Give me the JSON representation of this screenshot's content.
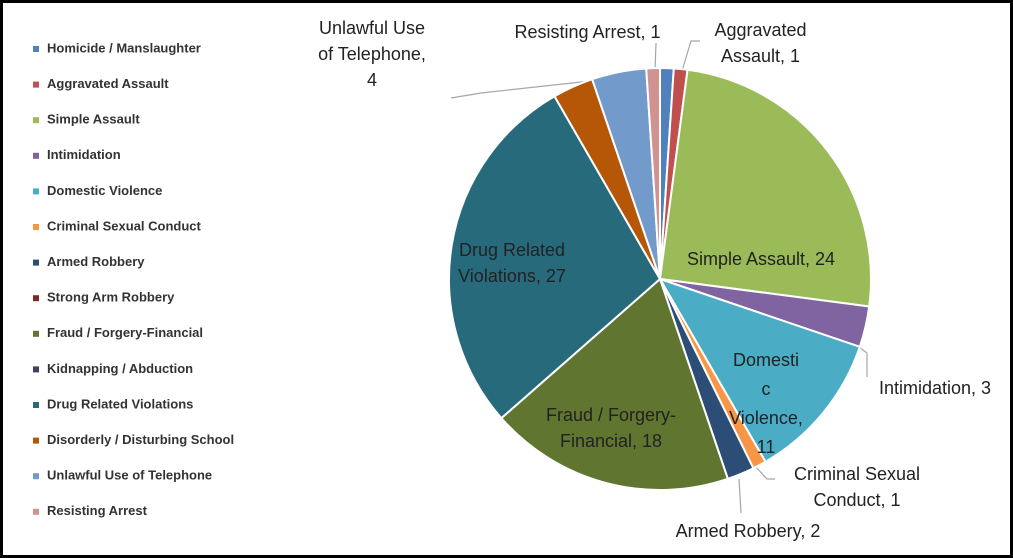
{
  "chart_data": {
    "type": "pie",
    "categories": [
      "Homicide / Manslaughter",
      "Aggravated Assault",
      "Simple Assault",
      "Intimidation",
      "Domestic Violence",
      "Criminal Sexual Conduct",
      "Armed Robbery",
      "Strong Arm Robbery",
      "Fraud / Forgery-Financial",
      "Kidnapping / Abduction",
      "Drug Related Violations",
      "Disorderly / Disturbing School",
      "Unlawful Use of Telephone",
      "Resisting Arrest"
    ],
    "values": [
      1,
      1,
      24,
      3,
      11,
      1,
      2,
      0,
      18,
      0,
      27,
      3,
      4,
      1
    ],
    "value_labels": [
      null,
      "Aggravated Assault, 1",
      "Simple Assault, 24",
      "Intimidation, 3",
      "Domestic Violence, 11",
      "Criminal Sexual Conduct, 1",
      "Armed Robbery, 2",
      null,
      "Fraud / Forgery-Financial, 18",
      null,
      "Drug Related Violations, 27",
      null,
      "Unlawful Use of Telephone, 4",
      "Resisting Arrest, 1"
    ],
    "colors": [
      "#4f81bd",
      "#c0504d",
      "#9bbb59",
      "#8064a2",
      "#4bacc6",
      "#f79646",
      "#2c4d75",
      "#772c2a",
      "#5f7530",
      "#4d3b62",
      "#276a7c",
      "#b65708",
      "#729aca",
      "#d19392"
    ],
    "legend": "left"
  }
}
